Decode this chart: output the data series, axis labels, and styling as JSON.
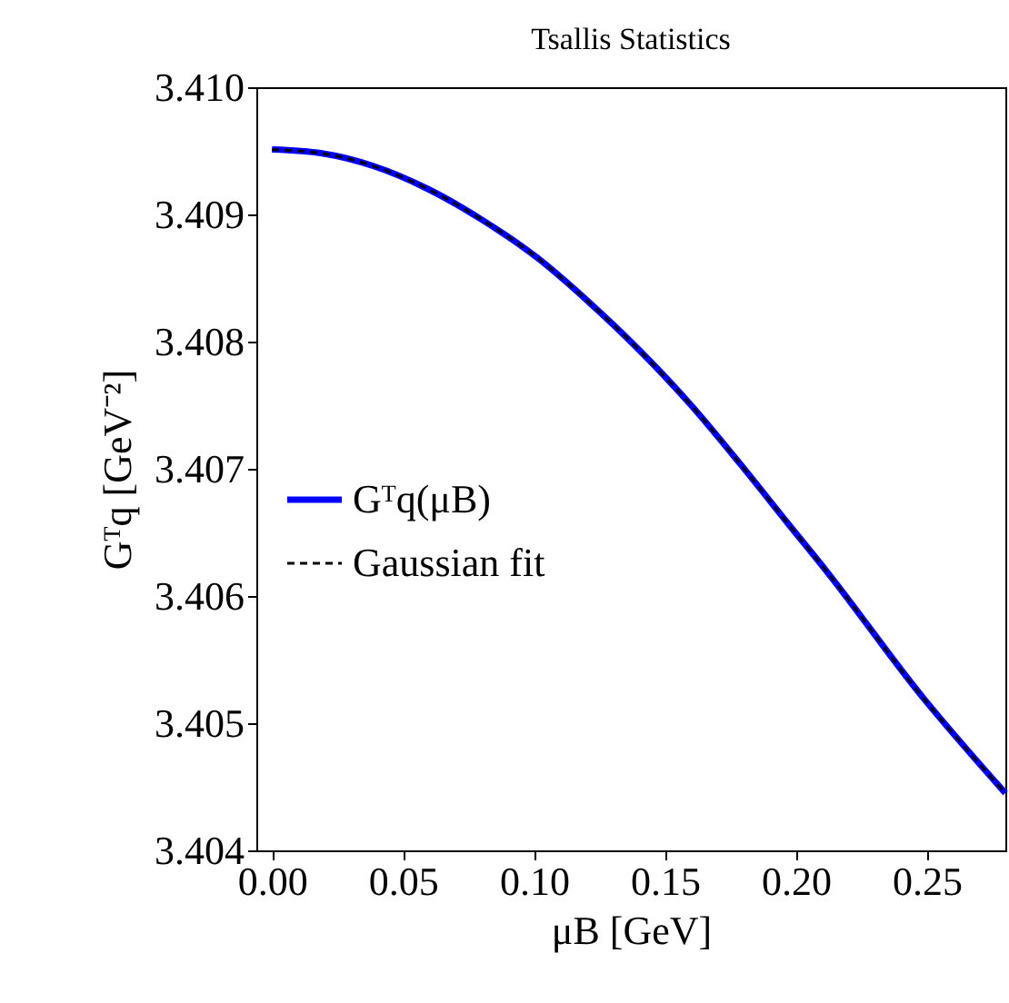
{
  "chart_data": {
    "type": "line",
    "title": "Tsallis Statistics",
    "xlabel": "μB [GeV]",
    "ylabel": "Gᵀq [GeV⁻²]",
    "x": [
      0,
      0.019,
      0.0387,
      0.0595,
      0.08,
      0.1012,
      0.121,
      0.1394,
      0.16,
      0.1787,
      0.197,
      0.2123,
      0.2482,
      0.28
    ],
    "series": [
      {
        "name": "Gᵀq(μB)",
        "color": "#0000ff",
        "line_style": "solid",
        "values": [
          3.40951,
          3.40948,
          3.40938,
          3.4092,
          3.40896,
          3.40866,
          3.40831,
          3.40795,
          3.4075,
          3.40704,
          3.40657,
          3.40618,
          3.40521,
          3.40445
        ]
      },
      {
        "name": "Gaussian fit",
        "color": "#000000",
        "line_style": "dashed",
        "values": [
          3.40951,
          3.40948,
          3.40938,
          3.4092,
          3.40896,
          3.40866,
          3.40831,
          3.40795,
          3.4075,
          3.40704,
          3.40657,
          3.40618,
          3.40521,
          3.40445
        ]
      }
    ],
    "xlim": [
      -0.006,
      0.28
    ],
    "ylim": [
      3.404,
      3.41
    ],
    "xticks": [
      {
        "value": 0,
        "label": "0.00"
      },
      {
        "value": 0.05,
        "label": "0.05"
      },
      {
        "value": 0.1,
        "label": "0.10"
      },
      {
        "value": 0.15,
        "label": "0.15"
      },
      {
        "value": 0.2,
        "label": "0.20"
      },
      {
        "value": 0.25,
        "label": "0.25"
      }
    ],
    "yticks": [
      {
        "value": 3.404,
        "label": "3.404"
      },
      {
        "value": 3.405,
        "label": "3.405"
      },
      {
        "value": 3.406,
        "label": "3.406"
      },
      {
        "value": 3.407,
        "label": "3.407"
      },
      {
        "value": 3.408,
        "label": "3.408"
      },
      {
        "value": 3.409,
        "label": "3.409"
      },
      {
        "value": 3.41,
        "label": "3.410"
      }
    ],
    "grid": false,
    "legend": "left"
  }
}
